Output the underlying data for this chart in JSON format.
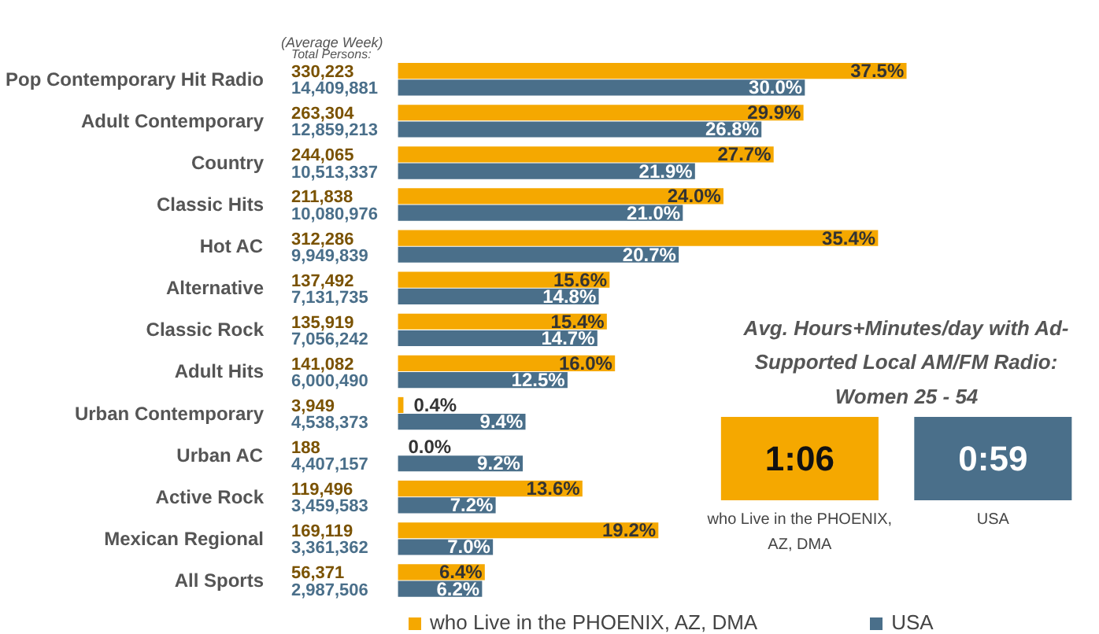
{
  "chart_data": [
    {
      "type": "bar",
      "orientation": "horizontal",
      "legend": "bottom",
      "categories": [
        "Pop Contemporary Hit Radio",
        "Adult Contemporary",
        "Country",
        "Classic Hits",
        "Hot AC",
        "Alternative",
        "Classic Rock",
        "Adult Hits",
        "Urban Contemporary",
        "Urban AC",
        "Active Rock",
        "Mexican Regional",
        "All Sports"
      ],
      "series": [
        {
          "name": "who Live in the PHOENIX, AZ, DMA",
          "color": "#f5a800",
          "values": [
            37.5,
            29.9,
            27.7,
            24.0,
            35.4,
            15.6,
            15.4,
            16.0,
            0.4,
            0.0,
            13.6,
            19.2,
            6.4
          ],
          "value_labels": [
            "37.5%",
            "29.9%",
            "27.7%",
            "24.0%",
            "35.4%",
            "15.6%",
            "15.4%",
            "16.0%",
            "0.4%",
            "0.0%",
            "13.6%",
            "19.2%",
            "6.4%"
          ]
        },
        {
          "name": "USA",
          "color": "#4a6f8a",
          "values": [
            30.0,
            26.8,
            21.9,
            21.0,
            20.7,
            14.8,
            14.7,
            12.5,
            9.4,
            9.2,
            7.2,
            7.0,
            6.2
          ],
          "value_labels": [
            "30.0%",
            "26.8%",
            "21.9%",
            "21.0%",
            "20.7%",
            "14.8%",
            "14.7%",
            "12.5%",
            "9.4%",
            "9.2%",
            "7.2%",
            "7.0%",
            "6.2%"
          ]
        }
      ],
      "annotations": [
        "(Average Week)",
        "Total Persons:",
        "330,223",
        "14,409,881",
        "263,304",
        "12,859,213",
        "244,065",
        "10,513,337",
        "211,838",
        "10,080,976",
        "312,286",
        "9,949,839",
        "137,492",
        "7,131,735",
        "135,919",
        "7,056,242",
        "141,082",
        "6,000,490",
        "3,949",
        "4,538,373",
        "188",
        "4,407,157",
        "119,496",
        "3,459,583",
        "169,119",
        "3,361,362",
        "56,371",
        "2,987,506"
      ]
    },
    {
      "type": "other",
      "title": "Avg. Hours+Minutes/day with Ad-Supported Local AM/FM Radio: Women 25 - 54",
      "categories": [
        "who Live in the PHOENIX, AZ, DMA",
        "USA"
      ],
      "value_labels": [
        "1:06",
        "0:59"
      ],
      "colors": [
        "#f5a800",
        "#4a6f8a"
      ]
    }
  ]
}
